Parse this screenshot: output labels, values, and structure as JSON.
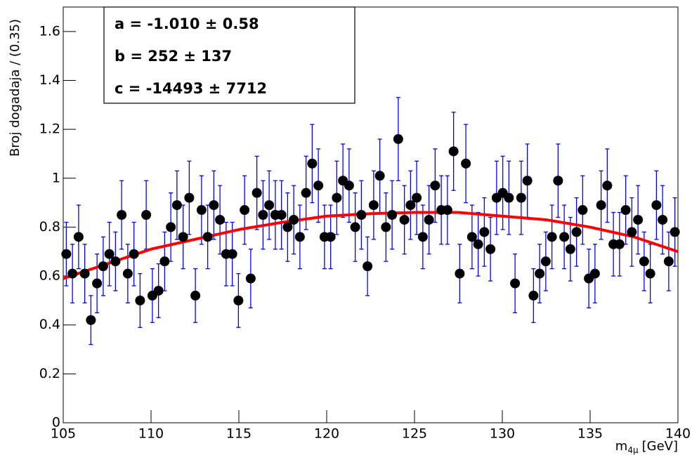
{
  "chart_data": {
    "type": "scatter",
    "y_label": "Broj dogadaja / (0.35)",
    "x_label": "m",
    "x_label_sub": "4μ",
    "x_label_unit": "[GeV]",
    "stats": [
      "a = -1.010  ± 0.58",
      "b =  252  ± 137",
      "c = -14493  ± 7712"
    ],
    "xlim": [
      105,
      140
    ],
    "xticks": [
      105,
      110,
      115,
      120,
      125,
      130,
      135,
      140
    ],
    "ylim": [
      0,
      1.7
    ],
    "yticks": [
      0,
      0.2,
      0.4,
      0.6,
      0.8,
      1,
      1.2,
      1.4,
      1.6
    ],
    "color": "#000000",
    "error_color": "#0000ff",
    "x": [
      105.175,
      105.525,
      105.875,
      106.225,
      106.575,
      106.925,
      107.275,
      107.625,
      107.975,
      108.325,
      108.675,
      109.025,
      109.375,
      109.725,
      110.075,
      110.425,
      110.775,
      111.125,
      111.475,
      111.825,
      112.175,
      112.525,
      112.875,
      113.225,
      113.575,
      113.925,
      114.275,
      114.625,
      114.975,
      115.325,
      115.675,
      116.025,
      116.375,
      116.725,
      117.075,
      117.425,
      117.775,
      118.125,
      118.475,
      118.825,
      119.175,
      119.525,
      119.875,
      120.225,
      120.575,
      120.925,
      121.275,
      121.625,
      121.975,
      122.325,
      122.675,
      123.025,
      123.375,
      123.725,
      124.075,
      124.425,
      124.775,
      125.125,
      125.475,
      125.825,
      126.175,
      126.525,
      126.875,
      127.225,
      127.575,
      127.925,
      128.275,
      128.625,
      128.975,
      129.325,
      129.675,
      130.025,
      130.375,
      130.725,
      131.075,
      131.425,
      131.775,
      132.125,
      132.475,
      132.825,
      133.175,
      133.525,
      133.875,
      134.225,
      134.575,
      134.925,
      135.275,
      135.625,
      135.975,
      136.325,
      136.675,
      137.025,
      137.375,
      137.725,
      138.075,
      138.425,
      138.775,
      139.125,
      139.475,
      139.825
    ],
    "values": [
      0.69,
      0.61,
      0.76,
      0.61,
      0.42,
      0.57,
      0.64,
      0.69,
      0.66,
      0.85,
      0.61,
      0.69,
      0.5,
      0.85,
      0.52,
      0.54,
      0.66,
      0.8,
      0.89,
      0.76,
      0.92,
      0.52,
      0.87,
      0.76,
      0.89,
      0.83,
      0.69,
      0.69,
      0.5,
      0.87,
      0.59,
      0.94,
      0.85,
      0.89,
      0.85,
      0.85,
      0.8,
      0.83,
      0.76,
      0.94,
      1.06,
      0.97,
      0.76,
      0.76,
      0.92,
      0.99,
      0.97,
      0.8,
      0.85,
      0.64,
      0.89,
      1.01,
      0.8,
      0.85,
      1.16,
      0.83,
      0.89,
      0.92,
      0.76,
      0.83,
      0.97,
      0.87,
      0.87,
      1.11,
      0.61,
      1.06,
      0.76,
      0.73,
      0.78,
      0.71,
      0.92,
      0.94,
      0.92,
      0.57,
      0.92,
      0.99,
      0.52,
      0.61,
      0.66,
      0.76,
      0.99,
      0.76,
      0.71,
      0.78,
      0.87,
      0.59,
      0.61,
      0.89,
      0.97,
      0.73,
      0.73,
      0.87,
      0.78,
      0.83,
      0.66,
      0.61,
      0.89,
      0.83,
      0.66,
      0.78
    ],
    "errors": [
      0.13,
      0.12,
      0.13,
      0.12,
      0.1,
      0.12,
      0.12,
      0.13,
      0.12,
      0.14,
      0.12,
      0.13,
      0.11,
      0.14,
      0.11,
      0.11,
      0.12,
      0.14,
      0.14,
      0.13,
      0.15,
      0.11,
      0.14,
      0.13,
      0.14,
      0.14,
      0.13,
      0.13,
      0.11,
      0.14,
      0.12,
      0.15,
      0.14,
      0.14,
      0.14,
      0.14,
      0.14,
      0.14,
      0.13,
      0.15,
      0.16,
      0.15,
      0.13,
      0.13,
      0.15,
      0.15,
      0.15,
      0.14,
      0.14,
      0.12,
      0.14,
      0.15,
      0.14,
      0.14,
      0.17,
      0.14,
      0.14,
      0.15,
      0.13,
      0.14,
      0.15,
      0.14,
      0.14,
      0.16,
      0.12,
      0.16,
      0.13,
      0.13,
      0.14,
      0.13,
      0.15,
      0.15,
      0.15,
      0.12,
      0.15,
      0.15,
      0.11,
      0.12,
      0.12,
      0.13,
      0.15,
      0.13,
      0.13,
      0.14,
      0.14,
      0.12,
      0.12,
      0.14,
      0.15,
      0.13,
      0.13,
      0.14,
      0.14,
      0.14,
      0.12,
      0.12,
      0.14,
      0.14,
      0.12,
      0.14
    ],
    "fit": {
      "color": "#ff0000",
      "x": [
        105,
        107.5,
        110,
        112.5,
        115,
        117.5,
        120,
        122.5,
        125,
        127.5,
        130,
        132.5,
        135,
        137.5,
        140
      ],
      "y": [
        0.59,
        0.65,
        0.71,
        0.75,
        0.79,
        0.82,
        0.845,
        0.855,
        0.86,
        0.86,
        0.845,
        0.83,
        0.8,
        0.76,
        0.7
      ]
    }
  }
}
